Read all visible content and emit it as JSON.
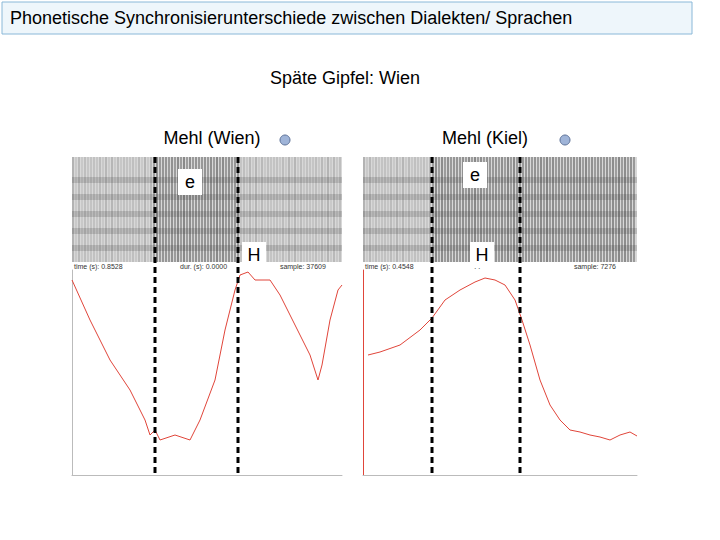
{
  "slide": {
    "title": "Phonetische Synchronisierunterschiede zwischen Dialekten/ Sprachen",
    "subtitle": "Späte Gipfel: Wien"
  },
  "chart_data": [
    {
      "type": "line",
      "title": "Mehl (Wien)",
      "color": "#e0453a",
      "tick_labels": false,
      "grid": false,
      "xlim": [
        0,
        270
      ],
      "ylim": [
        0,
        205
      ],
      "x": [
        0,
        18,
        38,
        58,
        73,
        78,
        83,
        88,
        103,
        118,
        128,
        143,
        153,
        163,
        168,
        176,
        183,
        190,
        198,
        208,
        218,
        228,
        238,
        246,
        250,
        258,
        266,
        270
      ],
      "values": [
        195,
        155,
        115,
        85,
        55,
        40,
        45,
        35,
        40,
        35,
        55,
        95,
        145,
        185,
        200,
        203,
        195,
        195,
        195,
        180,
        160,
        140,
        120,
        95,
        110,
        155,
        185,
        190
      ],
      "boundaries": [
        83,
        166
      ],
      "annotations": [
        "e",
        "H"
      ],
      "info": [
        "time (s): 0.8528",
        "dur. (s): 0.0000",
        "sample: 37609"
      ]
    },
    {
      "type": "line",
      "title": "Mehl (Kiel)",
      "color": "#e0453a",
      "tick_labels": false,
      "grid": false,
      "xlim": [
        0,
        274
      ],
      "ylim": [
        0,
        205
      ],
      "x": [
        5,
        17,
        37,
        57,
        69,
        82,
        97,
        112,
        122,
        132,
        142,
        152,
        159,
        167,
        177,
        187,
        197,
        207,
        217,
        227,
        237,
        247,
        257,
        267,
        274
      ],
      "values": [
        120,
        123,
        130,
        145,
        157,
        175,
        185,
        193,
        197,
        195,
        190,
        175,
        155,
        130,
        95,
        70,
        55,
        45,
        43,
        40,
        38,
        35,
        40,
        43,
        39
      ],
      "boundaries": [
        69,
        157
      ],
      "annotations": [
        "e",
        "H"
      ],
      "info": [
        "time (s): 0.4548",
        "44",
        "sample: 7276"
      ]
    }
  ]
}
